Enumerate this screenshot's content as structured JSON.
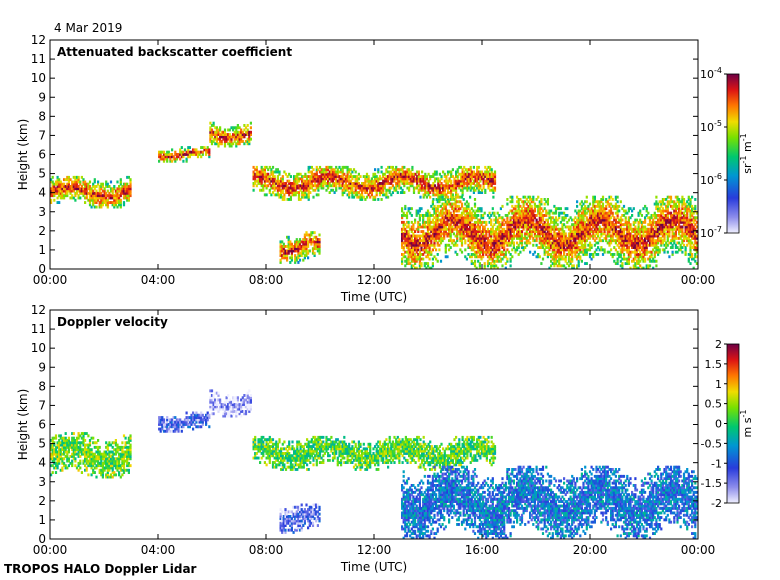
{
  "date_label": "4 Mar 2019",
  "footer_label": "TROPOS HALO Doppler Lidar",
  "chart_data": [
    {
      "type": "heatmap",
      "title": "Attenuated backscatter coefficient",
      "xlabel": "Time (UTC)",
      "ylabel": "Height (km)",
      "x_ticks": [
        "00:00",
        "04:00",
        "08:00",
        "12:00",
        "16:00",
        "20:00",
        "00:00"
      ],
      "x_range_hours": [
        0,
        24
      ],
      "y_ticks": [
        "0",
        "1",
        "2",
        "3",
        "4",
        "5",
        "6",
        "7",
        "8",
        "9",
        "10",
        "11",
        "12"
      ],
      "ylim": [
        0,
        12
      ],
      "colorbar": {
        "scale": "log",
        "ticks": [
          {
            "base": "10",
            "exp": "-4",
            "value": 0.0001
          },
          {
            "base": "10",
            "exp": "-5",
            "value": 1e-05
          },
          {
            "base": "10",
            "exp": "-6",
            "value": 1e-06
          },
          {
            "base": "10",
            "exp": "-7",
            "value": 1e-07
          }
        ],
        "units": {
          "a": "sr",
          "a_exp": "-1",
          "b": " m",
          "b_exp": "-1"
        },
        "range": [
          1e-07,
          0.0001
        ]
      },
      "features": [
        {
          "name": "cloud layer 00-03h",
          "t_start": 0.0,
          "t_end": 3.0,
          "h_bottom": 3.2,
          "h_top": 4.8
        },
        {
          "name": "cloud layer 04-06h",
          "t_start": 4.0,
          "t_end": 5.9,
          "h_bottom": 5.6,
          "h_top": 6.4
        },
        {
          "name": "cloud layer 06-07.5h",
          "t_start": 5.9,
          "t_end": 7.4,
          "h_bottom": 6.4,
          "h_top": 7.7
        },
        {
          "name": "cloud layer 07.5-16.5h",
          "t_start": 7.5,
          "t_end": 16.5,
          "h_bottom": 3.6,
          "h_top": 5.4
        },
        {
          "name": "boundary layer 08.5-10h",
          "t_start": 8.5,
          "t_end": 10.0,
          "h_bottom": 0.3,
          "h_top": 1.9
        },
        {
          "name": "boundary layer 13-24h",
          "t_start": 13.0,
          "t_end": 24.0,
          "h_bottom": 0.0,
          "h_top": 3.8
        }
      ]
    },
    {
      "type": "heatmap",
      "title": "Doppler velocity",
      "xlabel": "Time (UTC)",
      "ylabel": "Height (km)",
      "x_ticks": [
        "00:00",
        "04:00",
        "08:00",
        "12:00",
        "16:00",
        "20:00",
        "00:00"
      ],
      "x_range_hours": [
        0,
        24
      ],
      "y_ticks": [
        "0",
        "1",
        "2",
        "3",
        "4",
        "5",
        "6",
        "7",
        "8",
        "9",
        "10",
        "11",
        "12"
      ],
      "ylim": [
        0,
        12
      ],
      "colorbar": {
        "scale": "linear",
        "ticks": [
          "2",
          "1.5",
          "1",
          "0.5",
          "0",
          "-0.5",
          "-1",
          "-1.5",
          "-2"
        ],
        "units": {
          "a": "m",
          "b": " s",
          "b_exp": "-1"
        },
        "range": [
          -2,
          2
        ]
      },
      "features": [
        {
          "name": "cloud layer 00-03h",
          "t_start": 0.0,
          "t_end": 3.0,
          "h_bottom": 3.2,
          "h_top": 5.5,
          "velocity": 0.3
        },
        {
          "name": "cloud layer 04-06h",
          "t_start": 4.0,
          "t_end": 5.9,
          "h_bottom": 5.6,
          "h_top": 6.6,
          "velocity": -1.3
        },
        {
          "name": "cloud layer 06-07.5h",
          "t_start": 5.9,
          "t_end": 7.4,
          "h_bottom": 6.4,
          "h_top": 7.8,
          "velocity": -1.8
        },
        {
          "name": "cloud layer 07.5-16.5h",
          "t_start": 7.5,
          "t_end": 16.5,
          "h_bottom": 3.6,
          "h_top": 5.4,
          "velocity": 0.2
        },
        {
          "name": "boundary layer 08.5-10h",
          "t_start": 8.5,
          "t_end": 10.0,
          "h_bottom": 0.3,
          "h_top": 1.8,
          "velocity": -1.4
        },
        {
          "name": "boundary layer 13-24h",
          "t_start": 13.0,
          "t_end": 24.0,
          "h_bottom": 0.0,
          "h_top": 3.8,
          "velocity": -0.8
        }
      ]
    }
  ]
}
